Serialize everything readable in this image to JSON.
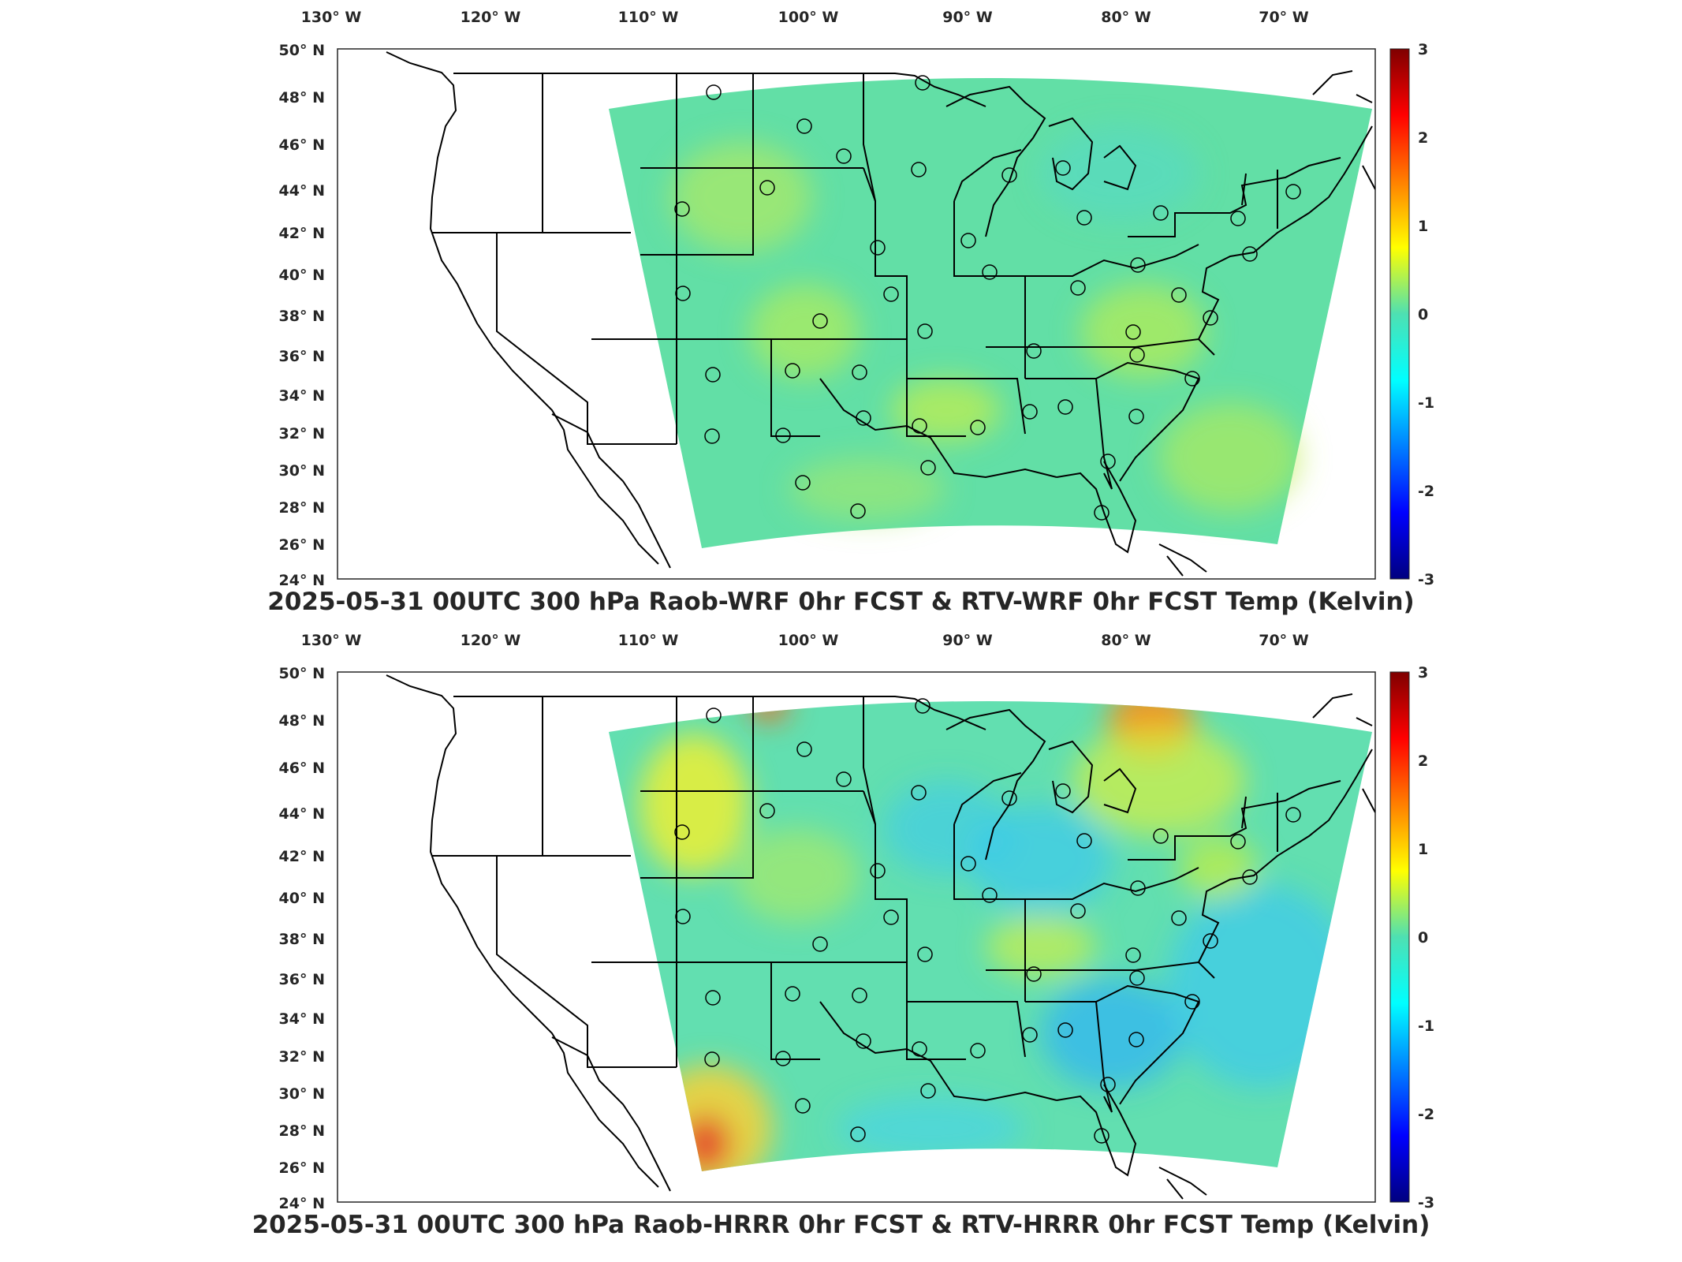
{
  "colors": {
    "field_base": "#4ee0b2",
    "field_warm": "#c8ef3c",
    "field_hot": "#e4462a",
    "field_cold": "#3bc9ef",
    "colormap": [
      "#00007f",
      "#0000ff",
      "#007fff",
      "#00ffff",
      "#7fff7f",
      "#ffff00",
      "#ff7f00",
      "#ff0000",
      "#7f0000"
    ]
  },
  "axis_labels": {
    "lon": [
      "130° W",
      "120° W",
      "110° W",
      "100° W",
      "90° W",
      "80° W",
      "70° W"
    ],
    "lat": [
      "50° N",
      "48° N",
      "46° N",
      "44° N",
      "42° N",
      "40° N",
      "38° N",
      "36° N",
      "34° N",
      "32° N",
      "30° N",
      "28° N",
      "26° N",
      "24° N"
    ]
  },
  "colorbar": {
    "ticks": [
      "3",
      "2",
      "1",
      "0",
      "-1",
      "-2",
      "-3"
    ],
    "range": [
      -3,
      3
    ]
  },
  "panels": [
    {
      "title": "2025-05-31 00UTC 300 hPa Raob-WRF 0hr FCST & RTV-WRF 0hr FCST Temp (Kelvin)",
      "model": "WRF"
    },
    {
      "title": "2025-05-31 00UTC 300 hPa Raob-HRRR 0hr FCST & RTV-HRRR 0hr FCST Temp (Kelvin)",
      "model": "HRRR"
    }
  ]
}
